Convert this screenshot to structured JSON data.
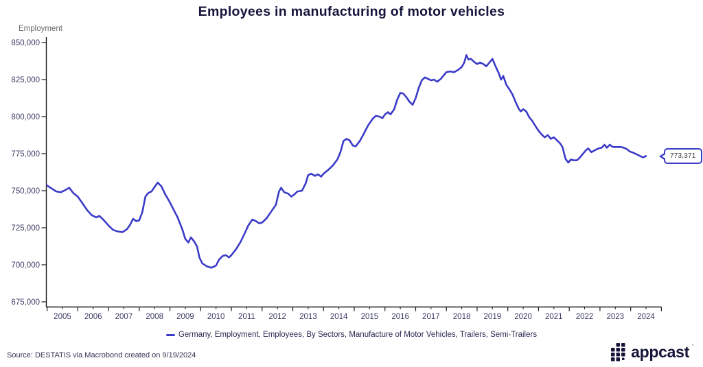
{
  "title": "Employees in manufacturing of motor vehicles",
  "y_axis": {
    "label": "Employment",
    "ticks": [
      {
        "value": 850000,
        "label": "850,000"
      },
      {
        "value": 825000,
        "label": "825,000"
      },
      {
        "value": 800000,
        "label": "800,000"
      },
      {
        "value": 775000,
        "label": "775,000"
      },
      {
        "value": 750000,
        "label": "750,000"
      },
      {
        "value": 725000,
        "label": "725,000"
      },
      {
        "value": 700000,
        "label": "700,000"
      },
      {
        "value": 675000,
        "label": "675,000"
      }
    ]
  },
  "x_axis": {
    "years": [
      "2005",
      "2006",
      "2007",
      "2008",
      "2009",
      "2010",
      "2011",
      "2012",
      "2013",
      "2014",
      "2015",
      "2016",
      "2017",
      "2018",
      "2019",
      "2020",
      "2021",
      "2022",
      "2023",
      "2024"
    ]
  },
  "legend": {
    "label": "Germany, Employment, Employees, By Sectors, Manufacture of Motor Vehicles, Trailers, Semi-Trailers"
  },
  "callout": {
    "label": "773,371"
  },
  "source": "Source: DESTATIS via Macrobond created on 9/19/2024",
  "logo": {
    "text": "appcast",
    "tm": "ʼ"
  },
  "colors": {
    "line": "#3B3BC8",
    "title": "#14143C",
    "tick_label": "#3A3A64",
    "axis": "#1A1A1A",
    "legend_text": "#2A2A55",
    "source_text": "#333355",
    "y_title": "#6B6B6B",
    "logo": "#15153A"
  },
  "chart_data": {
    "type": "line",
    "title": "Employees in manufacturing of motor vehicles",
    "xlabel": "",
    "ylabel": "Employment",
    "ylim": [
      675000,
      850000
    ],
    "x_range": [
      2005.0,
      2024.6
    ],
    "grid": false,
    "legend_position": "bottom",
    "end_label": 773371,
    "series": [
      {
        "name": "Germany, Employment, Employees, By Sectors, Manufacture of Motor Vehicles, Trailers, Semi-Trailers",
        "color": "#3B3BC8",
        "points": [
          [
            2005.0,
            753500
          ],
          [
            2005.15,
            751500
          ],
          [
            2005.3,
            749500
          ],
          [
            2005.45,
            749000
          ],
          [
            2005.6,
            750500
          ],
          [
            2005.72,
            752000
          ],
          [
            2005.85,
            748500
          ],
          [
            2006.0,
            746000
          ],
          [
            2006.15,
            741500
          ],
          [
            2006.3,
            737000
          ],
          [
            2006.45,
            733500
          ],
          [
            2006.6,
            732000
          ],
          [
            2006.7,
            733000
          ],
          [
            2006.85,
            730000
          ],
          [
            2007.0,
            726500
          ],
          [
            2007.15,
            723500
          ],
          [
            2007.3,
            722500
          ],
          [
            2007.45,
            722000
          ],
          [
            2007.6,
            724000
          ],
          [
            2007.7,
            727000
          ],
          [
            2007.8,
            731000
          ],
          [
            2007.9,
            729500
          ],
          [
            2008.0,
            730000
          ],
          [
            2008.1,
            735500
          ],
          [
            2008.2,
            746000
          ],
          [
            2008.3,
            748500
          ],
          [
            2008.4,
            749500
          ],
          [
            2008.5,
            752500
          ],
          [
            2008.6,
            755500
          ],
          [
            2008.72,
            753000
          ],
          [
            2008.85,
            747500
          ],
          [
            2009.0,
            742000
          ],
          [
            2009.1,
            738000
          ],
          [
            2009.25,
            732000
          ],
          [
            2009.4,
            724000
          ],
          [
            2009.5,
            717500
          ],
          [
            2009.6,
            715000
          ],
          [
            2009.68,
            718500
          ],
          [
            2009.78,
            716000
          ],
          [
            2009.88,
            712500
          ],
          [
            2009.96,
            705000
          ],
          [
            2010.05,
            701000
          ],
          [
            2010.2,
            699000
          ],
          [
            2010.35,
            698000
          ],
          [
            2010.5,
            699500
          ],
          [
            2010.6,
            703500
          ],
          [
            2010.72,
            706000
          ],
          [
            2010.82,
            706500
          ],
          [
            2010.92,
            705000
          ],
          [
            2011.0,
            706500
          ],
          [
            2011.15,
            710500
          ],
          [
            2011.3,
            715500
          ],
          [
            2011.45,
            722000
          ],
          [
            2011.55,
            726500
          ],
          [
            2011.68,
            730500
          ],
          [
            2011.8,
            729500
          ],
          [
            2011.9,
            728000
          ],
          [
            2012.0,
            728500
          ],
          [
            2012.15,
            731500
          ],
          [
            2012.3,
            736000
          ],
          [
            2012.45,
            740500
          ],
          [
            2012.55,
            749500
          ],
          [
            2012.62,
            752000
          ],
          [
            2012.72,
            749000
          ],
          [
            2012.85,
            748000
          ],
          [
            2012.95,
            746000
          ],
          [
            2013.05,
            747500
          ],
          [
            2013.15,
            749500
          ],
          [
            2013.3,
            750000
          ],
          [
            2013.42,
            755000
          ],
          [
            2013.5,
            760500
          ],
          [
            2013.6,
            761500
          ],
          [
            2013.72,
            760000
          ],
          [
            2013.82,
            761000
          ],
          [
            2013.92,
            759500
          ],
          [
            2014.0,
            761500
          ],
          [
            2014.15,
            764000
          ],
          [
            2014.3,
            767000
          ],
          [
            2014.45,
            771000
          ],
          [
            2014.55,
            776000
          ],
          [
            2014.65,
            783500
          ],
          [
            2014.75,
            785000
          ],
          [
            2014.85,
            784000
          ],
          [
            2014.95,
            780500
          ],
          [
            2015.05,
            780000
          ],
          [
            2015.18,
            783500
          ],
          [
            2015.3,
            788000
          ],
          [
            2015.45,
            794000
          ],
          [
            2015.6,
            798500
          ],
          [
            2015.7,
            800500
          ],
          [
            2015.82,
            800000
          ],
          [
            2015.92,
            799000
          ],
          [
            2016.0,
            801500
          ],
          [
            2016.1,
            803000
          ],
          [
            2016.18,
            801500
          ],
          [
            2016.3,
            805000
          ],
          [
            2016.4,
            811500
          ],
          [
            2016.5,
            816000
          ],
          [
            2016.6,
            815500
          ],
          [
            2016.7,
            813000
          ],
          [
            2016.8,
            810000
          ],
          [
            2016.9,
            808000
          ],
          [
            2017.0,
            812500
          ],
          [
            2017.1,
            819500
          ],
          [
            2017.2,
            824500
          ],
          [
            2017.3,
            826500
          ],
          [
            2017.4,
            825500
          ],
          [
            2017.5,
            824500
          ],
          [
            2017.6,
            825000
          ],
          [
            2017.7,
            823500
          ],
          [
            2017.82,
            825500
          ],
          [
            2017.92,
            828000
          ],
          [
            2018.0,
            830000
          ],
          [
            2018.12,
            830500
          ],
          [
            2018.25,
            830000
          ],
          [
            2018.38,
            831500
          ],
          [
            2018.5,
            833500
          ],
          [
            2018.58,
            836500
          ],
          [
            2018.65,
            841500
          ],
          [
            2018.72,
            838500
          ],
          [
            2018.8,
            839000
          ],
          [
            2018.9,
            837000
          ],
          [
            2019.0,
            835500
          ],
          [
            2019.1,
            836500
          ],
          [
            2019.2,
            835500
          ],
          [
            2019.3,
            834000
          ],
          [
            2019.4,
            836500
          ],
          [
            2019.5,
            839000
          ],
          [
            2019.6,
            834000
          ],
          [
            2019.7,
            829500
          ],
          [
            2019.78,
            825000
          ],
          [
            2019.85,
            827500
          ],
          [
            2019.95,
            821500
          ],
          [
            2020.05,
            818500
          ],
          [
            2020.15,
            815000
          ],
          [
            2020.25,
            810000
          ],
          [
            2020.35,
            805500
          ],
          [
            2020.42,
            803500
          ],
          [
            2020.5,
            805000
          ],
          [
            2020.6,
            803500
          ],
          [
            2020.7,
            799500
          ],
          [
            2020.8,
            797000
          ],
          [
            2020.9,
            793500
          ],
          [
            2021.0,
            790500
          ],
          [
            2021.1,
            788000
          ],
          [
            2021.2,
            786000
          ],
          [
            2021.3,
            787500
          ],
          [
            2021.4,
            785000
          ],
          [
            2021.5,
            786000
          ],
          [
            2021.6,
            784000
          ],
          [
            2021.7,
            782000
          ],
          [
            2021.78,
            779500
          ],
          [
            2021.88,
            771500
          ],
          [
            2021.97,
            769000
          ],
          [
            2022.05,
            771000
          ],
          [
            2022.15,
            770500
          ],
          [
            2022.25,
            770500
          ],
          [
            2022.35,
            772500
          ],
          [
            2022.45,
            775000
          ],
          [
            2022.55,
            777500
          ],
          [
            2022.62,
            778500
          ],
          [
            2022.72,
            776000
          ],
          [
            2022.85,
            777500
          ],
          [
            2022.95,
            778500
          ],
          [
            2023.05,
            779000
          ],
          [
            2023.15,
            781000
          ],
          [
            2023.22,
            779000
          ],
          [
            2023.32,
            781000
          ],
          [
            2023.42,
            779500
          ],
          [
            2023.55,
            779500
          ],
          [
            2023.68,
            779500
          ],
          [
            2023.78,
            779000
          ],
          [
            2023.88,
            778000
          ],
          [
            2023.97,
            776500
          ],
          [
            2024.1,
            775500
          ],
          [
            2024.25,
            774000
          ],
          [
            2024.4,
            772500
          ],
          [
            2024.5,
            773371
          ]
        ]
      }
    ]
  }
}
